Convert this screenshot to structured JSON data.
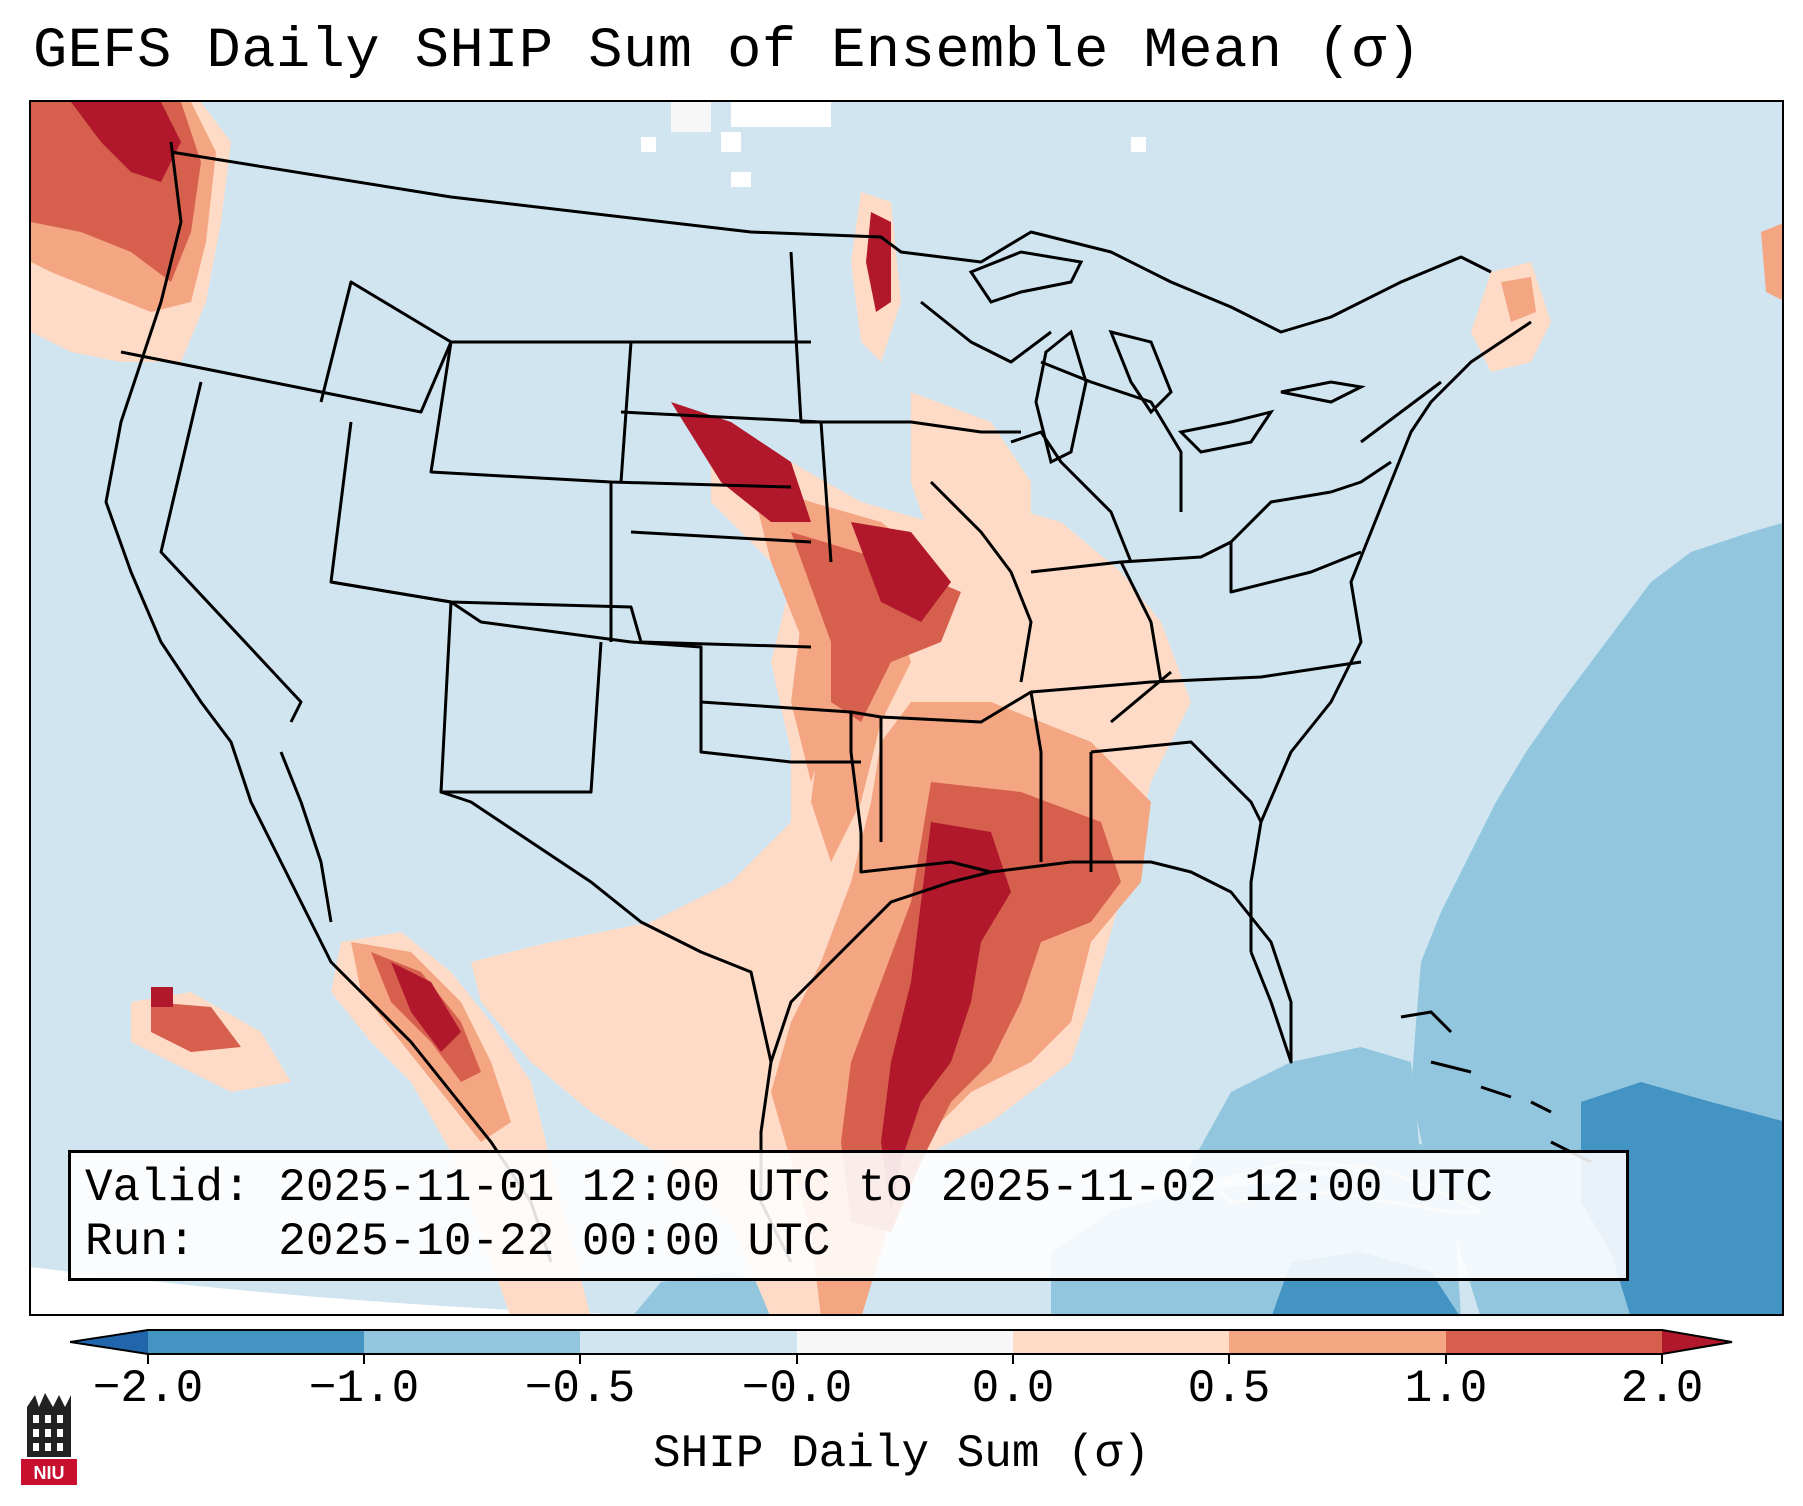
{
  "title": "GEFS Daily SHIP Sum of Ensemble Mean (σ)",
  "info": {
    "valid_label": "Valid:",
    "valid_value": "2025-11-01 12:00 UTC to 2025-11-02 12:00 UTC",
    "run_label": "Run:",
    "run_value": "2025-10-22 00:00 UTC"
  },
  "colorbar": {
    "label": "SHIP Daily Sum (σ)",
    "ticks": [
      "−2.0",
      "−1.0",
      "−0.5",
      "−0.0",
      "0.0",
      "0.5",
      "1.0",
      "2.0"
    ],
    "bins": [
      {
        "range": "< -2.0",
        "color": "#2166ac"
      },
      {
        "range": "-2.0 to -1.0",
        "color": "#4393c3"
      },
      {
        "range": "-1.0 to -0.5",
        "color": "#92c5de"
      },
      {
        "range": "-0.5 to -0.0",
        "color": "#d1e5f0"
      },
      {
        "range": "-0.0 to 0.0",
        "color": "#f7f7f7"
      },
      {
        "range": "0.0 to 0.5",
        "color": "#fddbc7"
      },
      {
        "range": "0.5 to 1.0",
        "color": "#f4a582"
      },
      {
        "range": "1.0 to 2.0",
        "color": "#d6604d"
      },
      {
        "range": "> 2.0",
        "color": "#b2182b"
      }
    ],
    "extend": "both"
  },
  "logo": {
    "text": "NIU",
    "description": "Northern Illinois University"
  },
  "map": {
    "region": "Contiguous United States",
    "background_color": "#d1e5f0",
    "ocean_negative_color": "#92c5de"
  }
}
